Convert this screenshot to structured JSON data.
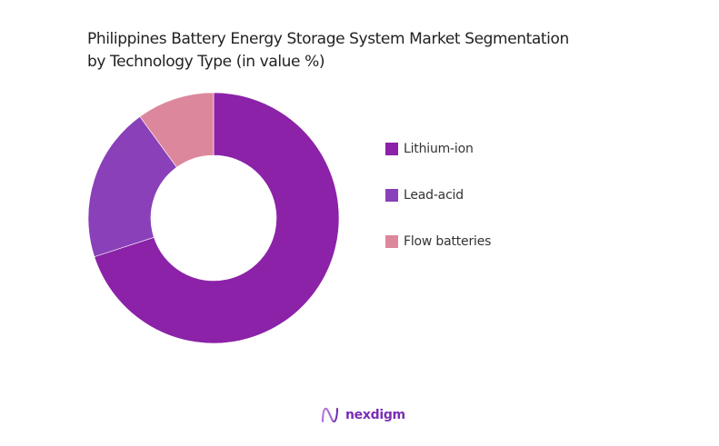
{
  "title": {
    "line1": "Philippines Battery Energy Storage System Market Segmentation",
    "line2": "by Technology Type (in value %)"
  },
  "chart_data": {
    "type": "pie",
    "subtype": "donut",
    "title": "Philippines Battery Energy Storage System Market Segmentation by Technology Type (in value %)",
    "categories": [
      "Lithium-ion",
      "Lead-acid",
      "Flow batteries"
    ],
    "values": [
      70,
      20,
      10
    ],
    "colors": [
      "#8b22a8",
      "#8a40b8",
      "#dd879d"
    ],
    "legend_position": "right",
    "data_labels": false
  },
  "legend": {
    "items": [
      {
        "label": "Lithium-ion",
        "color": "#8b22a8"
      },
      {
        "label": "Lead-acid",
        "color": "#8a40b8"
      },
      {
        "label": "Flow batteries",
        "color": "#dd879d"
      }
    ]
  },
  "branding": {
    "logo_text": "nexdigm",
    "logo_icon": "wave-n-icon"
  }
}
